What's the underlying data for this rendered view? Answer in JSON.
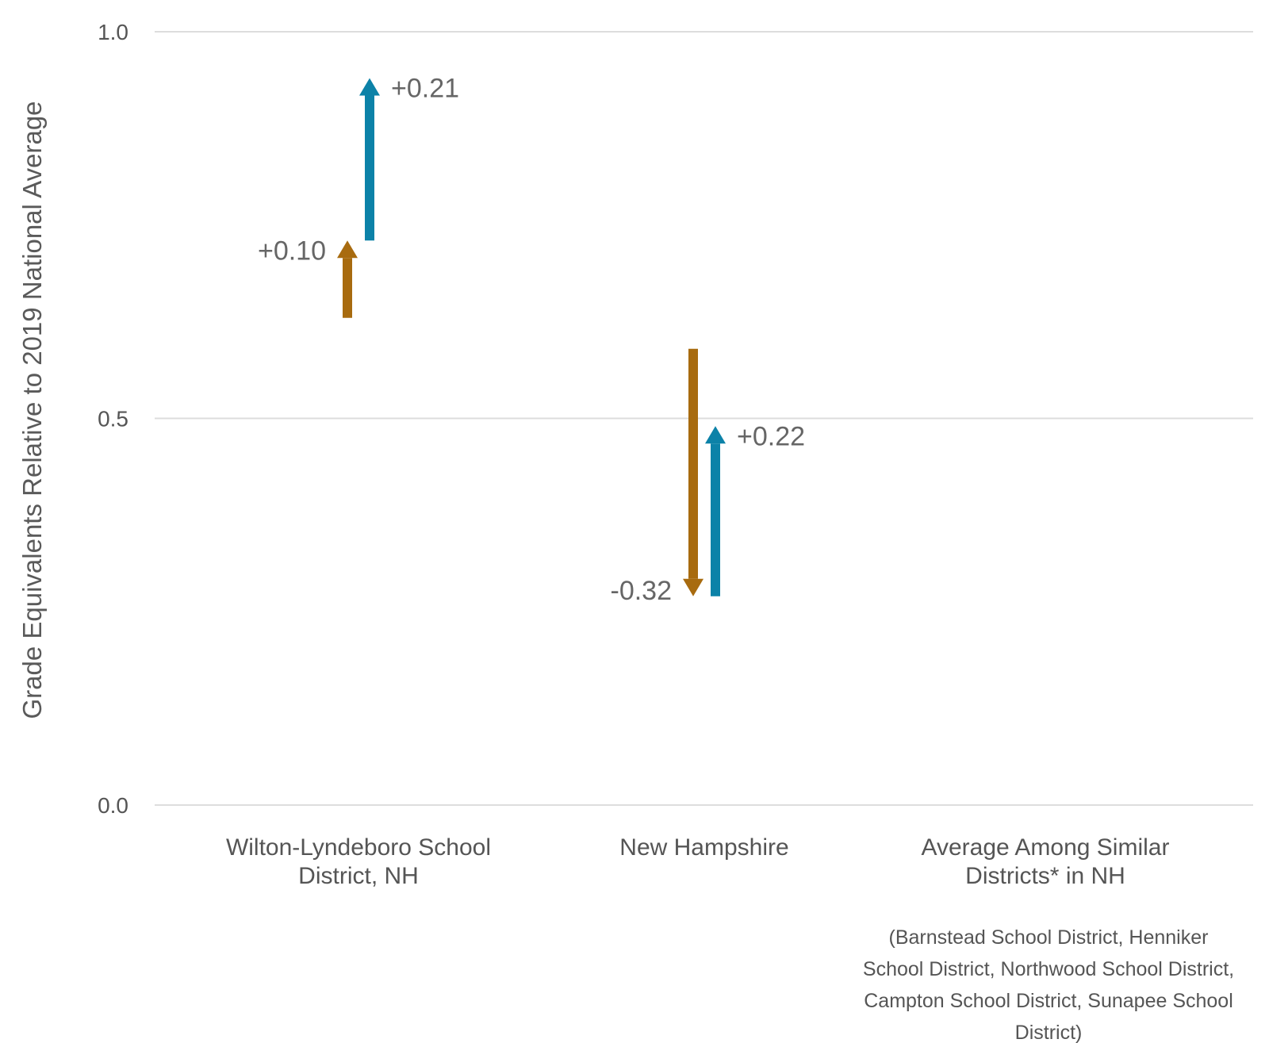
{
  "chart_data": {
    "type": "arrow",
    "ylabel": "Grade Equivalents Relative to 2019 National Average",
    "ylim": [
      0,
      1
    ],
    "yticks": [
      "0.0",
      "0.5",
      "1.0"
    ],
    "colors": {
      "series_1": "#A86B0F",
      "series_2": "#0C82A8",
      "grid": "#dddddd"
    },
    "categories": [
      {
        "label_lines": [
          "Wilton-Lyndeboro School",
          "District, NH"
        ],
        "note_lines": []
      },
      {
        "label_lines": [
          "New Hampshire"
        ],
        "note_lines": []
      },
      {
        "label_lines": [
          "Average Among Similar",
          "Districts* in NH"
        ],
        "note_lines": [
          "(Barnstead School District, Henniker",
          "School District, Northwood School District,",
          "Campton School District, Sunapee School",
          "District)"
        ]
      }
    ],
    "series": [
      {
        "color": "#A86B0F",
        "points": [
          {
            "category": 0,
            "start": 0.63,
            "end": 0.73,
            "label": "+0.10"
          },
          {
            "category": 1,
            "start": 0.59,
            "end": 0.27,
            "label": "-0.32"
          }
        ]
      },
      {
        "color": "#0C82A8",
        "points": [
          {
            "category": 0,
            "start": 0.73,
            "end": 0.94,
            "label": "+0.21"
          },
          {
            "category": 1,
            "start": 0.27,
            "end": 0.49,
            "label": "+0.22"
          }
        ]
      }
    ]
  }
}
